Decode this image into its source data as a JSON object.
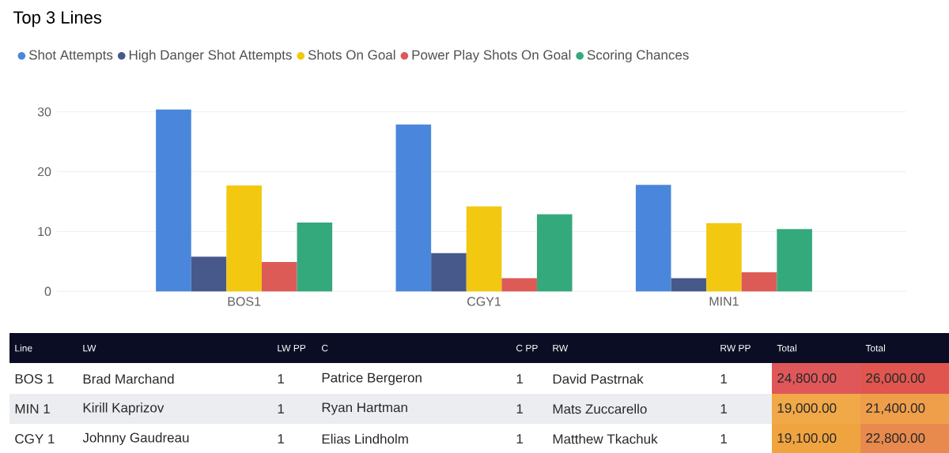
{
  "chart_data": {
    "type": "bar",
    "title": "Top 3 Lines",
    "categories": [
      "BOS1",
      "CGY1",
      "MIN1"
    ],
    "series": [
      {
        "name": "Shot Attempts",
        "color": "#4a86dc",
        "values": [
          30.4,
          27.9,
          17.8
        ]
      },
      {
        "name": "High Danger Shot Attempts",
        "color": "#47598a",
        "values": [
          5.8,
          6.4,
          2.2
        ]
      },
      {
        "name": "Shots On Goal",
        "color": "#f2c811",
        "values": [
          17.7,
          14.2,
          11.4
        ]
      },
      {
        "name": "Power Play Shots On Goal",
        "color": "#dd5b57",
        "values": [
          4.9,
          2.2,
          3.2
        ]
      },
      {
        "name": "Scoring Chances",
        "color": "#34a97c",
        "values": [
          11.5,
          12.9,
          10.4
        ]
      }
    ],
    "ylim": [
      0,
      31
    ],
    "yticks": [
      0,
      10,
      20,
      30
    ],
    "grid": "y",
    "legend": "top left",
    "marker": "circle",
    "annotations": [
      "Line",
      "LW",
      "LW PP",
      "C",
      "C PP",
      "RW",
      "RW PP",
      "Total",
      "Total",
      "BOS 1",
      "Brad Marchand",
      "1",
      "Patrice Bergeron",
      "1",
      "David Pastrnak",
      "1",
      "24,800.00",
      "26,000.00",
      "MIN 1",
      "Kirill Kaprizov",
      "1",
      "Ryan Hartman",
      "1",
      "Mats Zuccarello",
      "1",
      "19,000.00",
      "21,400.00",
      "CGY 1",
      "Johnny Gaudreau",
      "1",
      "Elias Lindholm",
      "1",
      "Matthew Tkachuk",
      "1",
      "19,100.00",
      "22,800.00"
    ]
  }
}
